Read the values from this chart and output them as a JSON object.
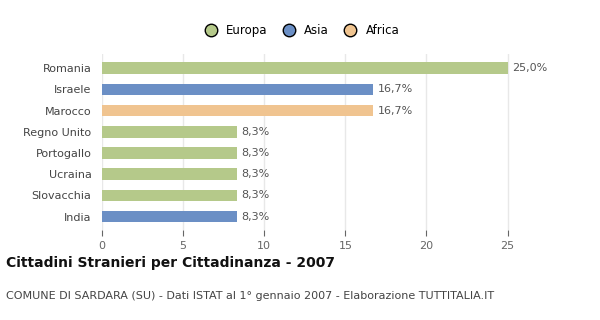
{
  "categories": [
    "India",
    "Slovacchia",
    "Ucraina",
    "Portogallo",
    "Regno Unito",
    "Marocco",
    "Israele",
    "Romania"
  ],
  "values": [
    8.3,
    8.3,
    8.3,
    8.3,
    8.3,
    16.7,
    16.7,
    25.0
  ],
  "colors": [
    "#6b8fc5",
    "#b5c98a",
    "#b5c98a",
    "#b5c98a",
    "#b5c98a",
    "#f0c490",
    "#6b8fc5",
    "#b5c98a"
  ],
  "labels": [
    "8,3%",
    "8,3%",
    "8,3%",
    "8,3%",
    "8,3%",
    "16,7%",
    "16,7%",
    "25,0%"
  ],
  "xlim": [
    0,
    27
  ],
  "xticks": [
    0,
    5,
    10,
    15,
    20,
    25
  ],
  "legend_labels": [
    "Europa",
    "Asia",
    "Africa"
  ],
  "legend_colors": [
    "#b5c98a",
    "#6b8fc5",
    "#f0c490"
  ],
  "title": "Cittadini Stranieri per Cittadinanza - 2007",
  "subtitle": "COMUNE DI SARDARA (SU) - Dati ISTAT al 1° gennaio 2007 - Elaborazione TUTTITALIA.IT",
  "bg_color": "#ffffff",
  "plot_bg_color": "#ffffff",
  "grid_color": "#e8e8e8",
  "title_fontsize": 10,
  "subtitle_fontsize": 8,
  "label_fontsize": 8,
  "tick_fontsize": 8,
  "bar_height": 0.55
}
